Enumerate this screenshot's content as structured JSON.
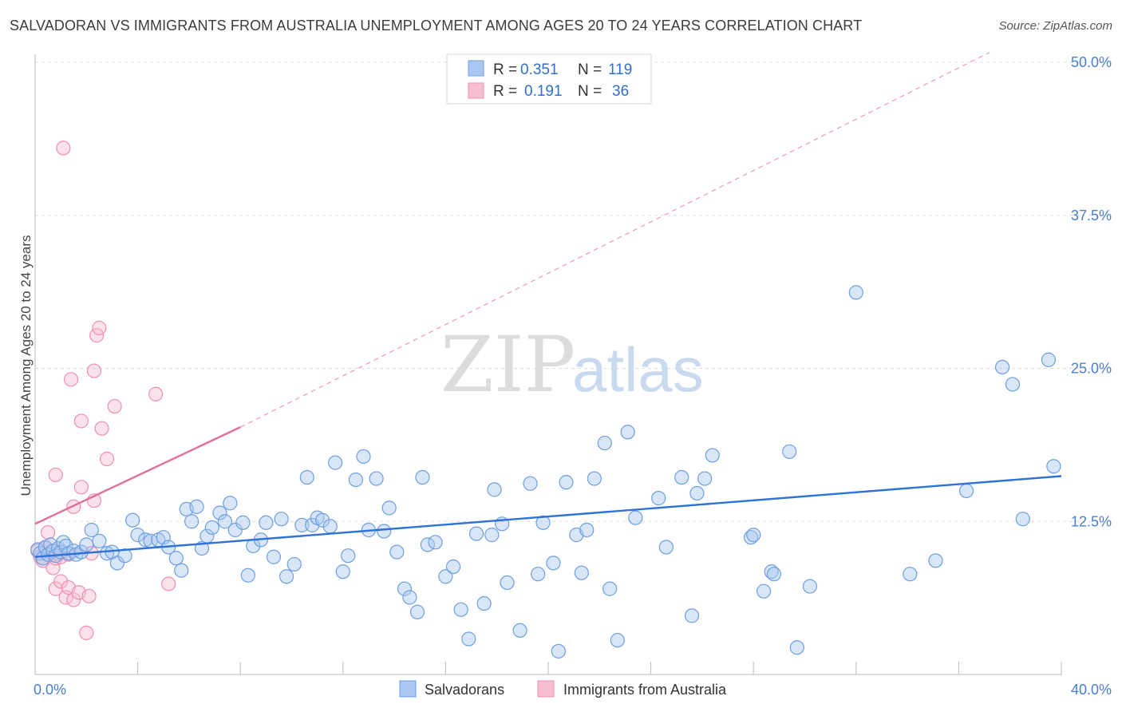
{
  "title": "SALVADORAN VS IMMIGRANTS FROM AUSTRALIA UNEMPLOYMENT AMONG AGES 20 TO 24 YEARS CORRELATION CHART",
  "source": "Source: ZipAtlas.com",
  "watermark": {
    "zip": "ZIP",
    "atlas": "atlas"
  },
  "colors": {
    "blue_fill": "#a9c7f0",
    "blue_stroke": "#6e9fe0",
    "blue_line": "#2f73d6",
    "pink_fill": "#f6bed0",
    "pink_stroke": "#ee8fb0",
    "pink_line": "#e26f98",
    "grid": "#dcdcdc",
    "tick_text": "#4a7fd0"
  },
  "legend": [
    {
      "r_label": "R =",
      "r_value": "0.351",
      "n_label": "N =",
      "n_value": "119",
      "color": "blue"
    },
    {
      "r_label": "R =",
      "r_value": "0.191",
      "n_label": "N =",
      "n_value": "36",
      "color": "pink"
    }
  ],
  "bottom_legend": [
    "Salvadorans",
    "Immigrants from Australia"
  ],
  "chart_data": {
    "type": "scatter",
    "title": "SALVADORAN VS IMMIGRANTS FROM AUSTRALIA UNEMPLOYMENT AMONG AGES 20 TO 24 YEARS CORRELATION CHART",
    "xlabel": "",
    "ylabel": "Unemployment Among Ages 20 to 24 years",
    "xlim": [
      0,
      40
    ],
    "ylim": [
      0,
      50
    ],
    "x_tick_labels": [
      "0.0%",
      "40.0%"
    ],
    "y_ticks": [
      12.5,
      25.0,
      37.5,
      50.0
    ],
    "y_tick_labels": [
      "12.5%",
      "25.0%",
      "37.5%",
      "50.0%"
    ],
    "grid": true,
    "legend_position": "top-center",
    "series": [
      {
        "name": "Salvadorans",
        "R": 0.351,
        "N": 119,
        "trend": {
          "x0": 0.0,
          "y0": 9.6,
          "x1": 40.0,
          "y1": 16.2,
          "style": "solid"
        },
        "points": [
          [
            0.1,
            10.2
          ],
          [
            0.2,
            9.9
          ],
          [
            0.3,
            9.5
          ],
          [
            0.4,
            10.4
          ],
          [
            0.5,
            9.8
          ],
          [
            0.6,
            10.6
          ],
          [
            0.7,
            10.1
          ],
          [
            0.8,
            9.7
          ],
          [
            0.9,
            10.3
          ],
          [
            1.0,
            10.0
          ],
          [
            1.1,
            10.8
          ],
          [
            1.2,
            10.5
          ],
          [
            1.3,
            9.9
          ],
          [
            1.5,
            10.1
          ],
          [
            1.6,
            9.8
          ],
          [
            1.8,
            10.0
          ],
          [
            2.0,
            10.6
          ],
          [
            2.2,
            11.8
          ],
          [
            2.5,
            10.9
          ],
          [
            2.8,
            9.9
          ],
          [
            3.0,
            10.0
          ],
          [
            3.2,
            9.1
          ],
          [
            3.5,
            9.7
          ],
          [
            3.8,
            12.6
          ],
          [
            4.0,
            11.4
          ],
          [
            4.3,
            11.0
          ],
          [
            4.5,
            10.9
          ],
          [
            4.8,
            11.0
          ],
          [
            5.0,
            11.2
          ],
          [
            5.2,
            10.4
          ],
          [
            5.5,
            9.5
          ],
          [
            5.7,
            8.5
          ],
          [
            5.9,
            13.5
          ],
          [
            6.1,
            12.5
          ],
          [
            6.3,
            13.7
          ],
          [
            6.5,
            10.3
          ],
          [
            6.7,
            11.3
          ],
          [
            6.9,
            12.0
          ],
          [
            7.2,
            13.2
          ],
          [
            7.4,
            12.5
          ],
          [
            7.6,
            14.0
          ],
          [
            7.8,
            11.8
          ],
          [
            8.1,
            12.4
          ],
          [
            8.3,
            8.1
          ],
          [
            8.5,
            10.5
          ],
          [
            8.8,
            11.0
          ],
          [
            9.0,
            12.4
          ],
          [
            9.3,
            9.6
          ],
          [
            9.6,
            12.7
          ],
          [
            9.8,
            8.0
          ],
          [
            10.1,
            9.0
          ],
          [
            10.4,
            12.2
          ],
          [
            10.6,
            16.1
          ],
          [
            10.8,
            12.2
          ],
          [
            11.0,
            12.8
          ],
          [
            11.2,
            12.6
          ],
          [
            11.5,
            12.1
          ],
          [
            11.7,
            17.3
          ],
          [
            12.0,
            8.4
          ],
          [
            12.2,
            9.7
          ],
          [
            12.5,
            15.9
          ],
          [
            12.8,
            17.8
          ],
          [
            13.0,
            11.8
          ],
          [
            13.3,
            16.0
          ],
          [
            13.6,
            11.7
          ],
          [
            13.8,
            13.6
          ],
          [
            14.1,
            10.0
          ],
          [
            14.4,
            7.0
          ],
          [
            14.6,
            6.3
          ],
          [
            14.9,
            5.1
          ],
          [
            15.1,
            16.1
          ],
          [
            15.3,
            10.6
          ],
          [
            15.6,
            10.8
          ],
          [
            16.0,
            8.0
          ],
          [
            16.3,
            8.8
          ],
          [
            16.6,
            5.3
          ],
          [
            16.9,
            2.9
          ],
          [
            17.2,
            11.5
          ],
          [
            17.5,
            5.8
          ],
          [
            17.8,
            11.4
          ],
          [
            17.9,
            15.1
          ],
          [
            18.2,
            12.3
          ],
          [
            18.4,
            7.5
          ],
          [
            18.9,
            3.6
          ],
          [
            19.3,
            15.6
          ],
          [
            19.6,
            8.2
          ],
          [
            19.8,
            12.4
          ],
          [
            20.2,
            9.1
          ],
          [
            20.4,
            1.9
          ],
          [
            20.7,
            15.7
          ],
          [
            21.1,
            11.4
          ],
          [
            21.3,
            8.3
          ],
          [
            21.5,
            11.8
          ],
          [
            21.8,
            16.0
          ],
          [
            22.2,
            18.9
          ],
          [
            22.4,
            7.0
          ],
          [
            22.7,
            2.8
          ],
          [
            23.1,
            19.8
          ],
          [
            23.4,
            12.8
          ],
          [
            24.3,
            14.4
          ],
          [
            24.6,
            10.4
          ],
          [
            25.2,
            16.1
          ],
          [
            25.6,
            4.8
          ],
          [
            25.8,
            14.8
          ],
          [
            26.1,
            16.0
          ],
          [
            26.4,
            17.9
          ],
          [
            27.9,
            11.2
          ],
          [
            28.0,
            11.4
          ],
          [
            28.4,
            6.8
          ],
          [
            28.7,
            8.4
          ],
          [
            28.8,
            8.2
          ],
          [
            29.4,
            18.2
          ],
          [
            29.7,
            2.2
          ],
          [
            30.2,
            7.2
          ],
          [
            32.0,
            31.2
          ],
          [
            34.1,
            8.2
          ],
          [
            35.1,
            9.3
          ],
          [
            36.3,
            15.0
          ],
          [
            37.7,
            25.1
          ],
          [
            38.1,
            23.7
          ]
        ]
      },
      {
        "name": "Immigrants from Australia",
        "R": 0.191,
        "N": 36,
        "trend": {
          "x0": 0.0,
          "y0": 12.3,
          "x1": 8.0,
          "y1": 20.2,
          "style": "solid",
          "extended_to": {
            "x": 37.2,
            "y": 50.8,
            "style": "dashed"
          }
        },
        "points": [
          [
            0.1,
            10.1
          ],
          [
            0.2,
            9.6
          ],
          [
            0.3,
            9.3
          ],
          [
            0.4,
            10.3
          ],
          [
            0.5,
            9.8
          ],
          [
            0.5,
            11.6
          ],
          [
            0.6,
            10.0
          ],
          [
            0.7,
            8.7
          ],
          [
            0.8,
            16.3
          ],
          [
            0.8,
            9.5
          ],
          [
            0.8,
            7.0
          ],
          [
            0.9,
            9.9
          ],
          [
            1.0,
            7.6
          ],
          [
            1.0,
            9.6
          ],
          [
            1.1,
            43.0
          ],
          [
            1.2,
            6.3
          ],
          [
            1.3,
            9.8
          ],
          [
            1.3,
            7.1
          ],
          [
            1.4,
            24.1
          ],
          [
            1.5,
            6.1
          ],
          [
            1.5,
            13.7
          ],
          [
            1.7,
            6.7
          ],
          [
            1.8,
            15.3
          ],
          [
            1.8,
            20.7
          ],
          [
            2.0,
            3.4
          ],
          [
            2.1,
            6.4
          ],
          [
            2.2,
            9.9
          ],
          [
            2.3,
            14.2
          ],
          [
            2.3,
            24.8
          ],
          [
            2.4,
            27.7
          ],
          [
            2.5,
            28.3
          ],
          [
            2.6,
            20.1
          ],
          [
            2.8,
            17.6
          ],
          [
            3.1,
            21.9
          ],
          [
            4.7,
            22.9
          ],
          [
            5.2,
            7.4
          ]
        ]
      }
    ],
    "extra_points_salvadorans": [
      [
        39.5,
        25.7
      ],
      [
        38.5,
        12.7
      ],
      [
        39.7,
        17.0
      ]
    ]
  }
}
